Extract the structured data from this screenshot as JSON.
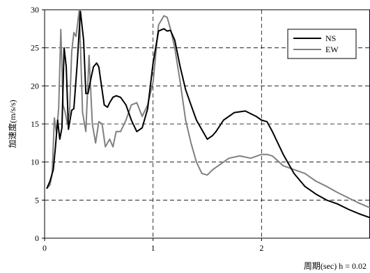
{
  "chart_data": {
    "type": "line",
    "title": "",
    "xlabel": "周期(sec) h = 0.02",
    "ylabel": "加速度(m/s/s)",
    "xlim": [
      0,
      3
    ],
    "ylim": [
      0,
      30
    ],
    "x_ticks": [
      "0",
      "1",
      "2"
    ],
    "y_ticks": [
      "0",
      "5",
      "10",
      "15",
      "20",
      "25",
      "30"
    ],
    "grid": "dashed",
    "legend": "top-right",
    "series": [
      {
        "name": "NS",
        "color": "#000000",
        "x": [
          0.02,
          0.05,
          0.08,
          0.1,
          0.12,
          0.14,
          0.16,
          0.18,
          0.2,
          0.22,
          0.25,
          0.27,
          0.3,
          0.33,
          0.36,
          0.38,
          0.4,
          0.42,
          0.45,
          0.48,
          0.5,
          0.52,
          0.55,
          0.58,
          0.6,
          0.63,
          0.66,
          0.7,
          0.75,
          0.8,
          0.85,
          0.9,
          0.95,
          1.0,
          1.05,
          1.1,
          1.13,
          1.16,
          1.2,
          1.25,
          1.3,
          1.35,
          1.4,
          1.5,
          1.55,
          1.58,
          1.65,
          1.75,
          1.85,
          1.95,
          2.0,
          2.05,
          2.1,
          2.2,
          2.3,
          2.4,
          2.5,
          2.6,
          2.7,
          2.8,
          2.9,
          3.0
        ],
        "y": [
          6.5,
          7.5,
          9.0,
          12.0,
          15.5,
          13.0,
          14.5,
          25.0,
          22.5,
          14.3,
          16.8,
          17.0,
          22.8,
          29.8,
          26.0,
          19.0,
          19.0,
          20.5,
          22.5,
          23.0,
          22.5,
          20.5,
          17.5,
          17.2,
          17.8,
          18.5,
          18.7,
          18.5,
          17.5,
          15.5,
          14.0,
          14.5,
          17.0,
          23.0,
          27.2,
          27.5,
          27.2,
          27.3,
          26.0,
          22.5,
          19.5,
          17.5,
          15.5,
          13.0,
          13.5,
          14.0,
          15.5,
          16.5,
          16.7,
          16.0,
          15.5,
          15.3,
          14.0,
          11.0,
          8.5,
          6.8,
          5.8,
          5.0,
          4.5,
          3.8,
          3.2,
          2.7
        ]
      },
      {
        "name": "EW",
        "color": "#808080",
        "x": [
          0.02,
          0.05,
          0.07,
          0.09,
          0.11,
          0.13,
          0.15,
          0.17,
          0.19,
          0.21,
          0.23,
          0.25,
          0.27,
          0.29,
          0.32,
          0.35,
          0.38,
          0.41,
          0.44,
          0.47,
          0.5,
          0.53,
          0.56,
          0.6,
          0.63,
          0.66,
          0.7,
          0.75,
          0.8,
          0.85,
          0.9,
          0.95,
          1.0,
          1.05,
          1.1,
          1.13,
          1.16,
          1.2,
          1.25,
          1.3,
          1.35,
          1.4,
          1.45,
          1.5,
          1.55,
          1.6,
          1.7,
          1.8,
          1.9,
          2.0,
          2.05,
          2.1,
          2.2,
          2.3,
          2.4,
          2.5,
          2.6,
          2.7,
          2.8,
          2.9,
          3.0
        ],
        "y": [
          6.5,
          7.0,
          8.5,
          15.8,
          13.8,
          17.0,
          27.4,
          17.5,
          16.5,
          15.0,
          16.5,
          24.5,
          27.0,
          26.5,
          30.0,
          16.5,
          14.0,
          24.0,
          15.0,
          12.5,
          15.3,
          15.0,
          12.0,
          13.0,
          12.0,
          14.0,
          14.0,
          15.5,
          17.5,
          17.8,
          16.0,
          17.5,
          20.5,
          28.0,
          29.2,
          29.0,
          27.5,
          25.0,
          20.5,
          15.5,
          12.5,
          10.0,
          8.5,
          8.3,
          9.0,
          9.5,
          10.5,
          10.8,
          10.5,
          11.0,
          11.0,
          10.8,
          9.5,
          9.0,
          8.5,
          7.5,
          6.8,
          6.0,
          5.3,
          4.6,
          4.0
        ]
      }
    ]
  }
}
